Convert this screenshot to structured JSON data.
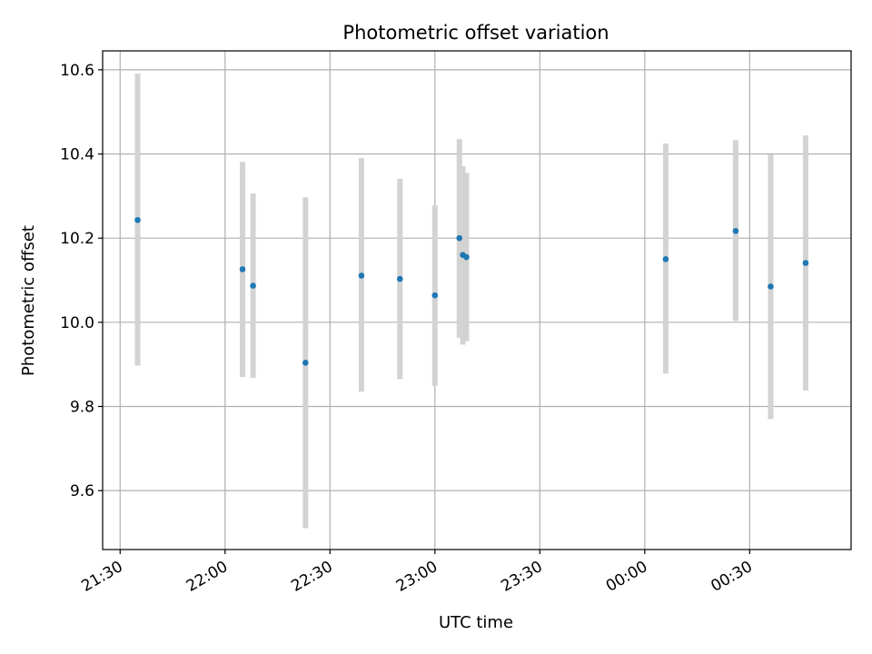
{
  "chart_data": {
    "type": "scatter",
    "title": "Photometric offset variation",
    "xlabel": "UTC time",
    "ylabel": "Photometric offset",
    "x_axis_type": "time",
    "xlim": [
      "21:25",
      "00:59"
    ],
    "ylim": [
      9.46,
      10.645
    ],
    "x_ticks": [
      "21:30",
      "22:00",
      "22:30",
      "23:00",
      "23:30",
      "00:00",
      "00:30"
    ],
    "y_ticks": [
      "9.6",
      "9.8",
      "10.0",
      "10.2",
      "10.4",
      "10.6"
    ],
    "y_tick_values": [
      9.6,
      9.8,
      10.0,
      10.2,
      10.4,
      10.6
    ],
    "grid": true,
    "legend": "none",
    "marker_color": "#1f77b4",
    "errorbar_color": "#d3d3d3",
    "points": [
      {
        "time": "21:35",
        "y": 10.243,
        "low": 9.897,
        "high": 10.591
      },
      {
        "time": "22:05",
        "y": 10.126,
        "low": 9.87,
        "high": 10.381
      },
      {
        "time": "22:08",
        "y": 10.087,
        "low": 9.868,
        "high": 10.306
      },
      {
        "time": "22:23",
        "y": 9.904,
        "low": 9.511,
        "high": 10.297
      },
      {
        "time": "22:39",
        "y": 10.111,
        "low": 9.835,
        "high": 10.39
      },
      {
        "time": "22:50",
        "y": 10.103,
        "low": 9.865,
        "high": 10.341
      },
      {
        "time": "23:00",
        "y": 10.064,
        "low": 9.849,
        "high": 10.278
      },
      {
        "time": "23:07",
        "y": 10.2,
        "low": 9.963,
        "high": 10.435
      },
      {
        "time": "23:08",
        "y": 10.16,
        "low": 9.947,
        "high": 10.371
      },
      {
        "time": "23:09",
        "y": 10.155,
        "low": 9.955,
        "high": 10.355
      },
      {
        "time": "00:06",
        "y": 10.15,
        "low": 9.878,
        "high": 10.425
      },
      {
        "time": "00:26",
        "y": 10.217,
        "low": 10.003,
        "high": 10.433
      },
      {
        "time": "00:36",
        "y": 10.085,
        "low": 9.77,
        "high": 10.399
      },
      {
        "time": "00:46",
        "y": 10.141,
        "low": 9.838,
        "high": 10.444
      }
    ]
  }
}
